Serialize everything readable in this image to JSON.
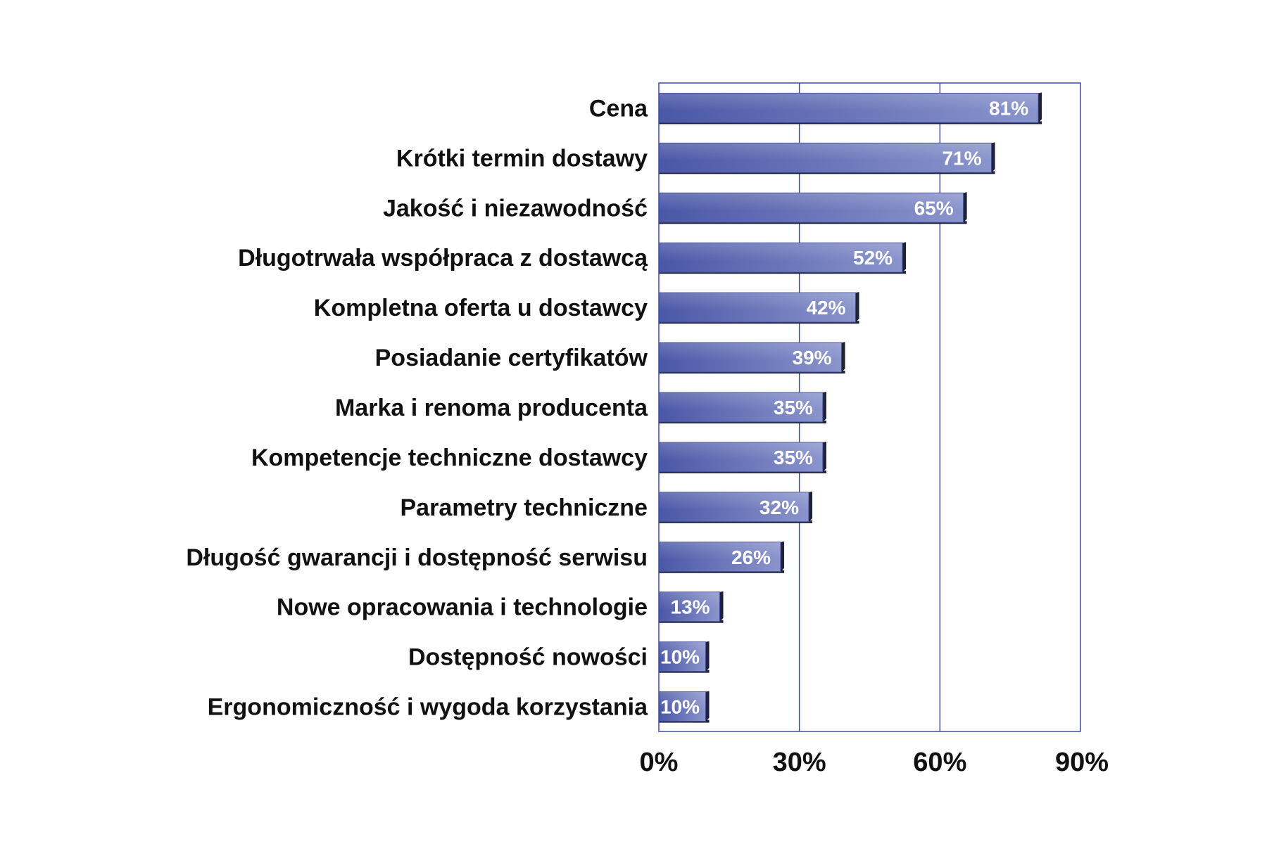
{
  "chart_data": {
    "type": "bar",
    "orientation": "horizontal",
    "categories": [
      "Cena",
      "Krótki termin dostawy",
      "Jakość i niezawodność",
      "Długotrwała współpraca z dostawcą",
      "Kompletna oferta u dostawcy",
      "Posiadanie certyfikatów",
      "Marka i renoma producenta",
      "Kompetencje techniczne dostawcy",
      "Parametry techniczne",
      "Długość gwarancji i dostępność serwisu",
      "Nowe opracowania i technologie",
      "Dostępność nowości",
      "Ergonomiczność i wygoda korzystania"
    ],
    "values": [
      81,
      71,
      65,
      52,
      42,
      39,
      35,
      35,
      32,
      26,
      13,
      10,
      10
    ],
    "value_labels": [
      "81%",
      "71%",
      "65%",
      "52%",
      "42%",
      "39%",
      "35%",
      "35%",
      "32%",
      "26%",
      "13%",
      "10%",
      "10%"
    ],
    "xlim": [
      0,
      90
    ],
    "x_ticks": [
      0,
      30,
      60,
      90
    ],
    "x_tick_labels": [
      "0%",
      "30%",
      "60%",
      "90%"
    ],
    "grid": true,
    "colors": {
      "bar_light": "#8a94cc",
      "bar_dark": "#4a57a6",
      "bar_shadow": "#1f2233",
      "grid": "#3b4bb0",
      "frame": "#3b4bb0"
    }
  }
}
